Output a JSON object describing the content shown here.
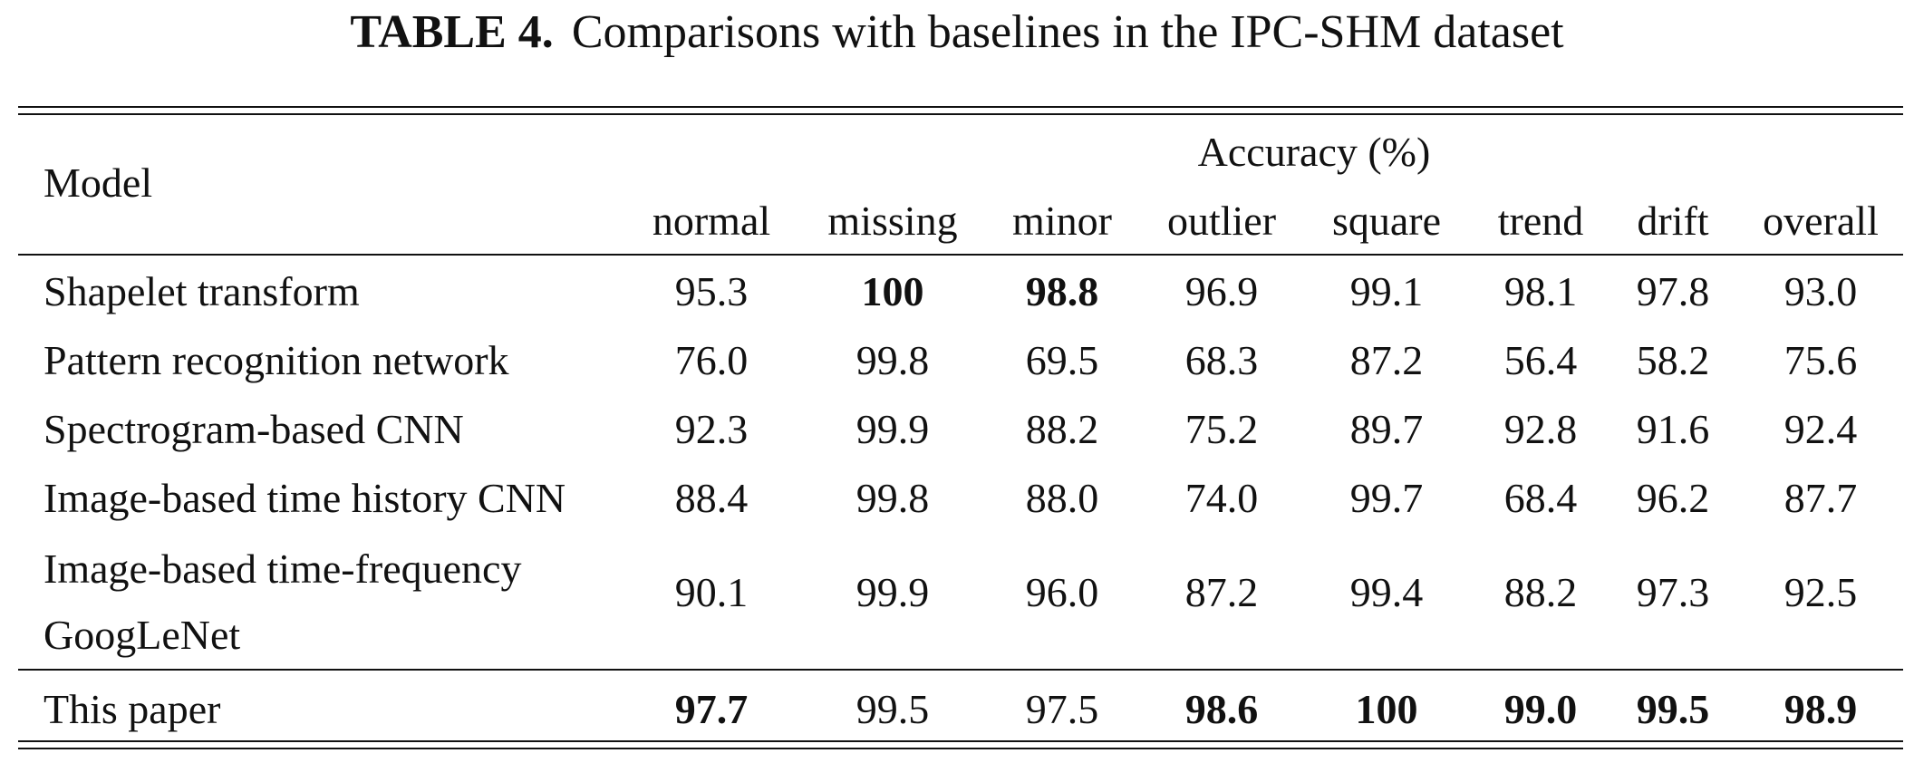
{
  "caption": {
    "label": "TABLE 4.",
    "text": "Comparisons with baselines in the IPC-SHM dataset"
  },
  "header": {
    "model": "Model",
    "group": "Accuracy (%)",
    "columns": [
      "normal",
      "missing",
      "minor",
      "outlier",
      "square",
      "trend",
      "drift",
      "overall"
    ]
  },
  "rows": [
    {
      "model": [
        "Shapelet transform"
      ],
      "values": [
        "95.3",
        "100",
        "98.8",
        "96.9",
        "99.1",
        "98.1",
        "97.8",
        "93.0"
      ],
      "bold": [
        false,
        true,
        true,
        false,
        false,
        false,
        false,
        false
      ]
    },
    {
      "model": [
        "Pattern recognition network"
      ],
      "values": [
        "76.0",
        "99.8",
        "69.5",
        "68.3",
        "87.2",
        "56.4",
        "58.2",
        "75.6"
      ],
      "bold": [
        false,
        false,
        false,
        false,
        false,
        false,
        false,
        false
      ]
    },
    {
      "model": [
        "Spectrogram-based CNN"
      ],
      "values": [
        "92.3",
        "99.9",
        "88.2",
        "75.2",
        "89.7",
        "92.8",
        "91.6",
        "92.4"
      ],
      "bold": [
        false,
        false,
        false,
        false,
        false,
        false,
        false,
        false
      ]
    },
    {
      "model": [
        "Image-based time history CNN"
      ],
      "values": [
        "88.4",
        "99.8",
        "88.0",
        "74.0",
        "99.7",
        "68.4",
        "96.2",
        "87.7"
      ],
      "bold": [
        false,
        false,
        false,
        false,
        false,
        false,
        false,
        false
      ]
    },
    {
      "model": [
        "Image-based time-frequency",
        "GoogLeNet"
      ],
      "values": [
        "90.1",
        "99.9",
        "96.0",
        "87.2",
        "99.4",
        "88.2",
        "97.3",
        "92.5"
      ],
      "bold": [
        false,
        false,
        false,
        false,
        false,
        false,
        false,
        false
      ]
    },
    {
      "model": [
        "This paper"
      ],
      "values": [
        "97.7",
        "99.5",
        "97.5",
        "98.6",
        "100",
        "99.0",
        "99.5",
        "98.9"
      ],
      "bold": [
        true,
        false,
        false,
        true,
        true,
        true,
        true,
        true
      ]
    }
  ]
}
